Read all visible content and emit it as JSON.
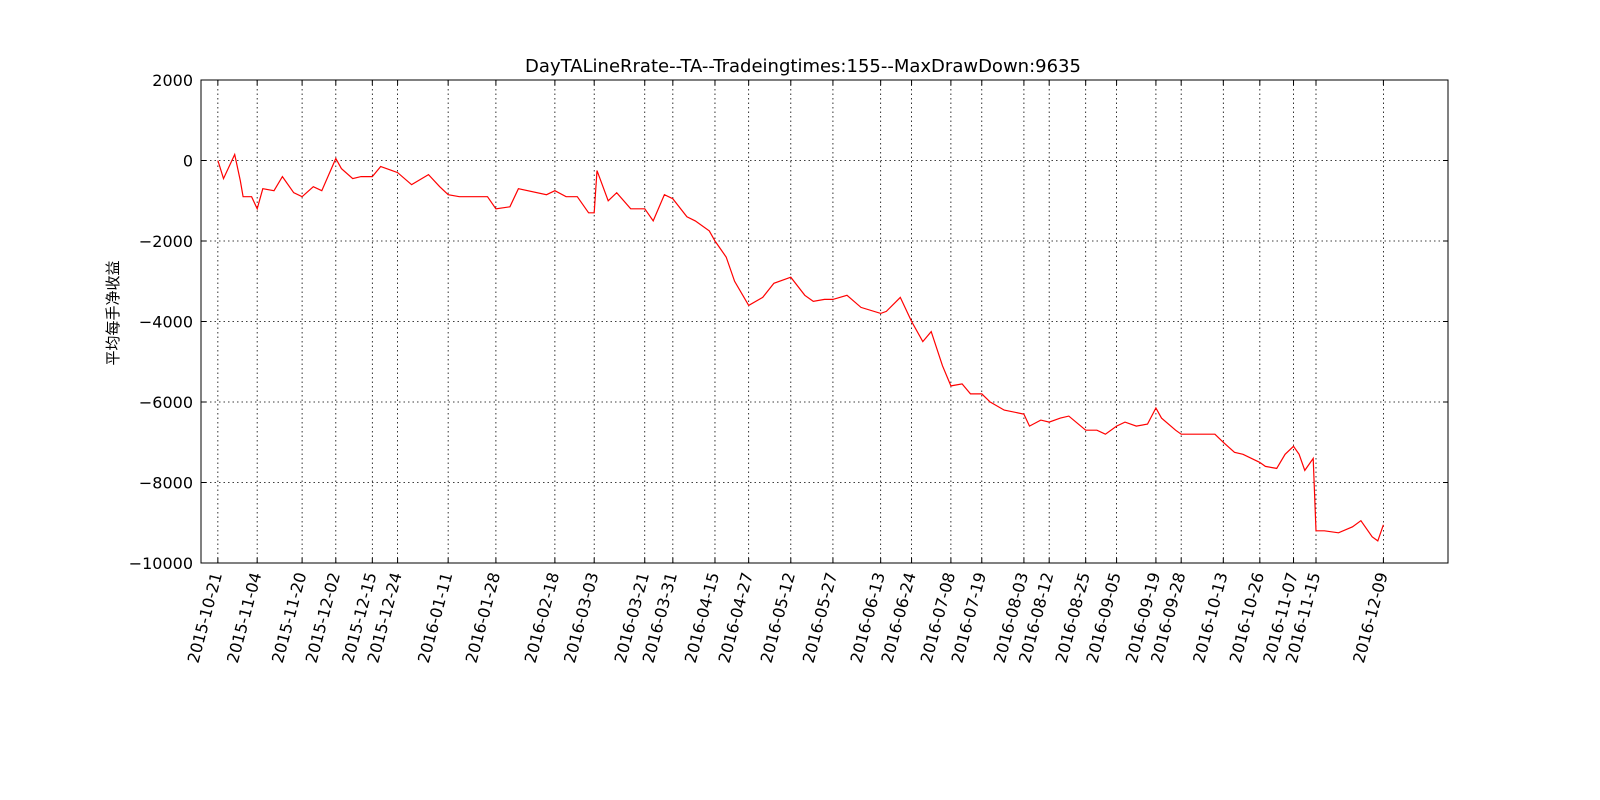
{
  "chart_data": {
    "type": "line",
    "title": "DayTALineRrate--TA--Tradeingtimes:155--MaxDrawDown:9635",
    "xlabel": "",
    "ylabel": "平均每手净收益",
    "ylim": [
      -10000,
      2000
    ],
    "yticks": [
      2000,
      0,
      -2000,
      -4000,
      -6000,
      -8000,
      -10000
    ],
    "ytick_labels": [
      "2000",
      "0",
      "−2000",
      "−4000",
      "−6000",
      "−8000",
      "−10000"
    ],
    "xticks": [
      "2015-10-21",
      "2015-11-04",
      "2015-11-20",
      "2015-12-02",
      "2015-12-15",
      "2015-12-24",
      "2016-01-11",
      "2016-01-28",
      "2016-02-18",
      "2016-03-03",
      "2016-03-21",
      "2016-03-31",
      "2016-04-15",
      "2016-04-27",
      "2016-05-12",
      "2016-05-27",
      "2016-06-13",
      "2016-06-24",
      "2016-07-08",
      "2016-07-19",
      "2016-08-03",
      "2016-08-12",
      "2016-08-25",
      "2016-09-05",
      "2016-09-19",
      "2016-09-28",
      "2016-10-13",
      "2016-10-26",
      "2016-11-07",
      "2016-11-15",
      "2016-12-09"
    ],
    "grid": true,
    "line_color": "#ff0000",
    "series": [
      {
        "x": [
          "2015-10-21",
          "2015-10-23",
          "2015-10-27",
          "2015-10-29",
          "2015-10-30",
          "2015-11-02",
          "2015-11-04",
          "2015-11-06",
          "2015-11-10",
          "2015-11-13",
          "2015-11-17",
          "2015-11-20",
          "2015-11-24",
          "2015-11-27",
          "2015-12-02",
          "2015-12-04",
          "2015-12-08",
          "2015-12-11",
          "2015-12-15",
          "2015-12-18",
          "2015-12-22",
          "2015-12-24",
          "2015-12-29",
          "2016-01-04",
          "2016-01-08",
          "2016-01-11",
          "2016-01-15",
          "2016-01-20",
          "2016-01-25",
          "2016-01-28",
          "2016-02-02",
          "2016-02-05",
          "2016-02-15",
          "2016-02-18",
          "2016-02-22",
          "2016-02-26",
          "2016-03-01",
          "2016-03-03",
          "2016-03-04",
          "2016-03-08",
          "2016-03-11",
          "2016-03-16",
          "2016-03-21",
          "2016-03-24",
          "2016-03-28",
          "2016-03-31",
          "2016-04-05",
          "2016-04-08",
          "2016-04-13",
          "2016-04-15",
          "2016-04-19",
          "2016-04-22",
          "2016-04-27",
          "2016-05-02",
          "2016-05-06",
          "2016-05-12",
          "2016-05-17",
          "2016-05-20",
          "2016-05-24",
          "2016-05-27",
          "2016-06-01",
          "2016-06-06",
          "2016-06-13",
          "2016-06-15",
          "2016-06-20",
          "2016-06-24",
          "2016-06-28",
          "2016-07-01",
          "2016-07-05",
          "2016-07-08",
          "2016-07-12",
          "2016-07-15",
          "2016-07-19",
          "2016-07-22",
          "2016-07-27",
          "2016-08-03",
          "2016-08-05",
          "2016-08-09",
          "2016-08-12",
          "2016-08-16",
          "2016-08-19",
          "2016-08-25",
          "2016-08-29",
          "2016-09-01",
          "2016-09-05",
          "2016-09-08",
          "2016-09-12",
          "2016-09-16",
          "2016-09-19",
          "2016-09-21",
          "2016-09-26",
          "2016-09-28",
          "2016-10-10",
          "2016-10-13",
          "2016-10-17",
          "2016-10-20",
          "2016-10-26",
          "2016-10-28",
          "2016-11-01",
          "2016-11-04",
          "2016-11-07",
          "2016-11-09",
          "2016-11-11",
          "2016-11-14",
          "2016-11-15",
          "2016-11-18",
          "2016-11-23",
          "2016-11-28",
          "2016-12-01",
          "2016-12-05",
          "2016-12-07",
          "2016-12-09"
        ],
        "y": [
          0,
          -450,
          150,
          -500,
          -900,
          -900,
          -1200,
          -700,
          -750,
          -400,
          -800,
          -900,
          -650,
          -750,
          50,
          -200,
          -450,
          -400,
          -400,
          -150,
          -250,
          -300,
          -600,
          -350,
          -650,
          -850,
          -900,
          -900,
          -900,
          -1200,
          -1150,
          -700,
          -850,
          -750,
          -900,
          -900,
          -1300,
          -1300,
          -250,
          -1000,
          -800,
          -1200,
          -1200,
          -1500,
          -850,
          -950,
          -1400,
          -1500,
          -1750,
          -2000,
          -2400,
          -3000,
          -3600,
          -3400,
          -3050,
          -2900,
          -3350,
          -3500,
          -3450,
          -3450,
          -3350,
          -3650,
          -3800,
          -3750,
          -3400,
          -4000,
          -4500,
          -4250,
          -5100,
          -5600,
          -5550,
          -5800,
          -5800,
          -6000,
          -6200,
          -6300,
          -6600,
          -6450,
          -6500,
          -6400,
          -6350,
          -6700,
          -6700,
          -6800,
          -6600,
          -6500,
          -6600,
          -6550,
          -6150,
          -6400,
          -6700,
          -6800,
          -6800,
          -7000,
          -7250,
          -7300,
          -7500,
          -7600,
          -7650,
          -7300,
          -7100,
          -7300,
          -7700,
          -7400,
          -9200,
          -9200,
          -9250,
          -9100,
          -8950,
          -9350,
          -9450,
          -9050
        ]
      }
    ]
  }
}
